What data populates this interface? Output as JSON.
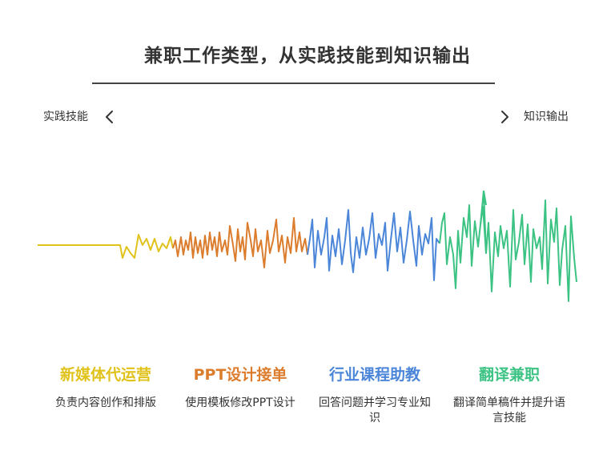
{
  "title": "兼职工作类型，从实践技能到知识输出",
  "axis": {
    "left_label": "实践技能",
    "right_label": "知识输出",
    "left_icon": "chevron-left-icon",
    "right_icon": "chevron-right-icon"
  },
  "categories": [
    {
      "title": "新媒体代运营",
      "desc": "负责内容创作和排版",
      "color": "#e0c21a"
    },
    {
      "title": "PPT设计接单",
      "desc": "使用模板修改PPT设计",
      "color": "#dc7d2e"
    },
    {
      "title": "行业课程助教",
      "desc": "回答问题并学习专业知识",
      "color": "#4b86d9"
    },
    {
      "title": "翻译兼职",
      "desc": "翻译简单稿件并提升语言技能",
      "color": "#3cc384"
    }
  ]
}
